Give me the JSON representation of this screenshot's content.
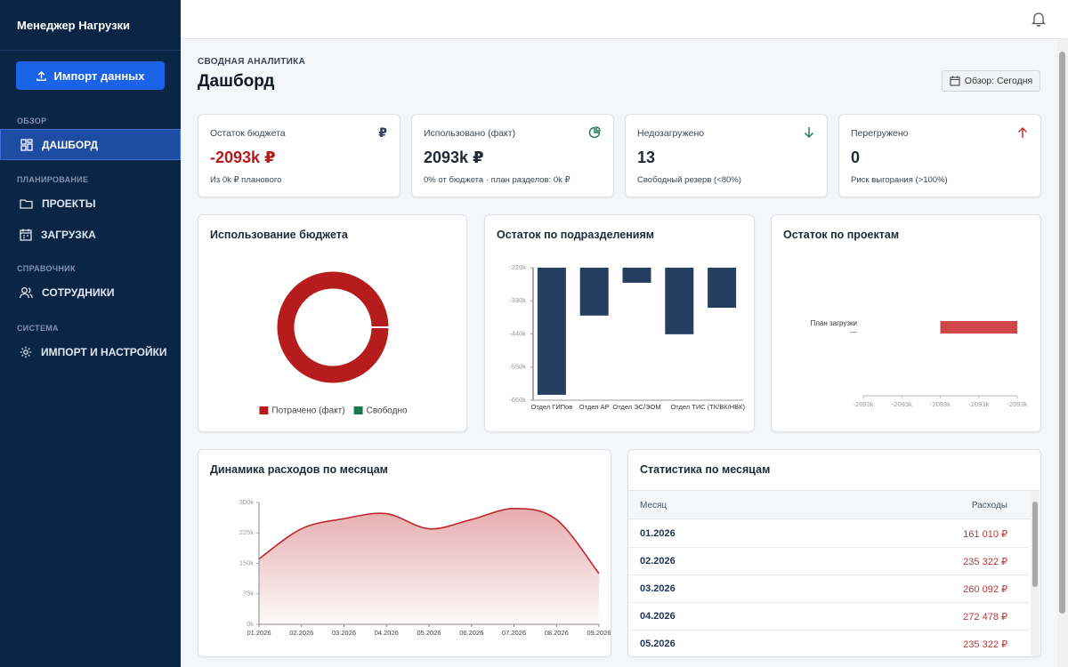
{
  "sidebar": {
    "app_name": "Менеджер Нагрузки",
    "import_button": "Импорт данных",
    "sections": [
      {
        "title": "ОБЗОР",
        "items": [
          "ДАШБОРД"
        ]
      },
      {
        "title": "ПЛАНИРОВАНИЕ",
        "items": [
          "ПРОЕКТЫ",
          "ЗАГРУЗКА"
        ]
      },
      {
        "title": "СПРАВОЧНИК",
        "items": [
          "СОТРУДНИКИ"
        ]
      },
      {
        "title": "СИСТЕМА",
        "items": [
          "ИМПОРТ И НАСТРОЙКИ"
        ]
      }
    ]
  },
  "header": {
    "eyebrow": "СВОДНАЯ АНАЛИТИКА",
    "title": "Дашборд",
    "period_button": "Обзор: Сегодня"
  },
  "kpis": [
    {
      "label": "Остаток бюджета",
      "icon": "₽",
      "value": "-2093k ₽",
      "note": "Из 0k ₽ планового"
    },
    {
      "label": "Использовано (факт)",
      "value": "2093k ₽",
      "note": "0% от бюджета · план разделов: 0k ₽"
    },
    {
      "label": "Недозагружено",
      "value": "13",
      "note": "Свободный резерв (<80%)"
    },
    {
      "label": "Перегружено",
      "value": "0",
      "note": "Риск выгорания (>100%)"
    }
  ],
  "chart_data": [
    {
      "type": "pie",
      "title": "Использование бюджета",
      "donut": true,
      "legend": "bottom",
      "categories": [
        "Потрачено (факт)",
        "Свободно"
      ],
      "values": [
        2093,
        0
      ],
      "colors": [
        "#b71c1c",
        "#1b7a4c"
      ]
    },
    {
      "type": "bar",
      "title": "Остаток по подразделениям",
      "categories": [
        "Отдел ГИПов",
        "Отдел АР",
        "Отдел ЭС/ЭОМ",
        null,
        "Отдел ТИС (ТК/ВК/НВК)"
      ],
      "values": [
        -642000,
        -379000,
        -270000,
        -441000,
        -353000
      ],
      "color": "#263f61",
      "ylim": [
        -660000,
        -220000
      ],
      "yticks": [
        {
          "value": -220000,
          "label": "-220k"
        },
        {
          "value": -330000,
          "label": "-330k"
        },
        {
          "value": -440000,
          "label": "-440k"
        },
        {
          "value": -550000,
          "label": "-550k"
        },
        {
          "value": -660000,
          "label": "-660k"
        }
      ]
    },
    {
      "type": "hbar",
      "title": "Остаток по проектам",
      "categories": [
        "План загрузки"
      ],
      "category_notes": [
        "—"
      ],
      "values": [
        -2093000
      ],
      "color": "#cf4646",
      "xlim": [
        -2093400,
        -2092600
      ],
      "xticks": [
        {
          "value": -2093400,
          "label": "-2093k"
        },
        {
          "value": -2093200,
          "label": "-2093k"
        },
        {
          "value": -2093000,
          "label": "-2093k"
        },
        {
          "value": -2092800,
          "label": "-2093k"
        },
        {
          "value": -2092600,
          "label": "-2093k"
        }
      ]
    },
    {
      "type": "area",
      "title": "Динамика расходов по месяцам",
      "categories": [
        "01.2026",
        "02.2026",
        "03.2026",
        "04.2026",
        "05.2026",
        "06.2026",
        "07.2026",
        "08.2026",
        "09.2026"
      ],
      "values": [
        161010,
        235322,
        260092,
        272478,
        235322,
        258000,
        285000,
        258000,
        125000
      ],
      "color": "#c0282d",
      "ylim": [
        0,
        300000
      ],
      "yticks": [
        {
          "value": 0,
          "label": "0k"
        },
        {
          "value": 75000,
          "label": "75k"
        },
        {
          "value": 150000,
          "label": "150k"
        },
        {
          "value": 225000,
          "label": "225k"
        },
        {
          "value": 300000,
          "label": "300k"
        }
      ]
    }
  ],
  "table": {
    "title": "Статистика по месяцам",
    "columns": [
      "Месяц",
      "Расходы"
    ],
    "rows": [
      [
        "01.2026",
        "161 010 ₽"
      ],
      [
        "02.2026",
        "235 322 ₽"
      ],
      [
        "03.2026",
        "260 092 ₽"
      ],
      [
        "04.2026",
        "272 478 ₽"
      ],
      [
        "05.2026",
        "235 322 ₽"
      ]
    ]
  }
}
